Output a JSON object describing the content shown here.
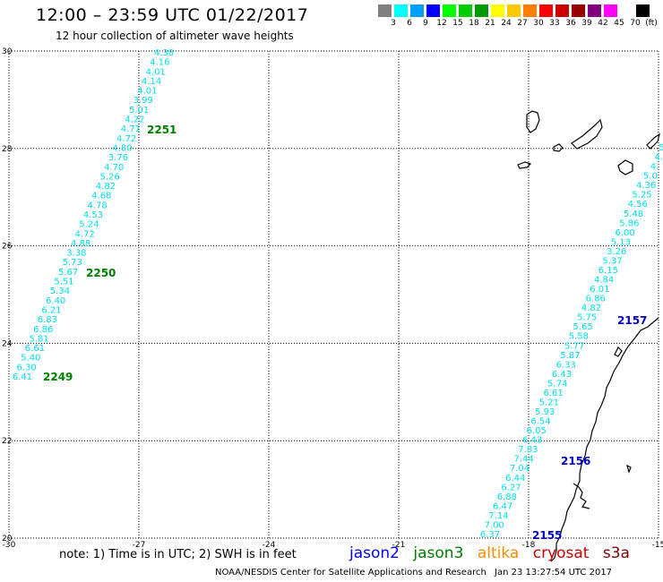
{
  "header": {
    "title": "12:00 – 23:59 UTC 01/22/2017",
    "subtitle": "12 hour collection of altimeter wave heights"
  },
  "color_scale": {
    "colors": [
      "#808080",
      "#00ffff",
      "#00a0ff",
      "#0000ff",
      "#00ff00",
      "#00cc00",
      "#009900",
      "#ffff00",
      "#ffc800",
      "#ff8000",
      "#ff0000",
      "#cc0000",
      "#990000",
      "#800080",
      "#ff00ff",
      "#ffffff",
      "#000000"
    ],
    "labels": [
      "3",
      "6",
      "9",
      "12",
      "15",
      "18",
      "21",
      "24",
      "27",
      "30",
      "33",
      "36",
      "39",
      "42",
      "45",
      "70",
      "(ft)"
    ]
  },
  "map": {
    "lat_labels": [
      "30",
      "28",
      "26",
      "24",
      "22",
      "20"
    ],
    "lon_labels": [
      "-30",
      "-27",
      "-24",
      "-21",
      "-18",
      "-15"
    ],
    "track_color": "#00e0e8",
    "track_left": [
      "4.38",
      "4.16",
      "4.01",
      "4.14",
      "4.01",
      "3.99",
      "5.01",
      "4.22",
      "4.71",
      "4.72",
      "4.80",
      "3.76",
      "4.70",
      "5.26",
      "4.82",
      "4.68",
      "4.78",
      "4.53",
      "5.24",
      "4.72",
      "4.88",
      "3.38",
      "5.73",
      "5.67",
      "5.51",
      "5.34",
      "6.40",
      "6.21",
      "6.83",
      "6.86",
      "5.81",
      "6.61",
      "5.40",
      "6.30",
      "6.41"
    ],
    "track_right": [
      "5.",
      "4.",
      "4.",
      "5.0",
      "4.36",
      "5.25",
      "4.56",
      "5.48",
      "5.86",
      "6.00",
      "5.13",
      "3.26",
      "5.37",
      "6.15",
      "4.84",
      "6.01",
      "6.86",
      "4.82",
      "5.75",
      "5.65",
      "5.58",
      "5.77",
      "5.87",
      "6.33",
      "6.43",
      "5.74",
      "6.61",
      "5.21",
      "5.93",
      "6.54",
      "6.05",
      "6.43",
      "7.83",
      "7.44",
      "7.04",
      "6.44",
      "6.27",
      "6.88",
      "6.47",
      "7.14",
      "7.00",
      "6.37"
    ],
    "time_labels": [
      {
        "text": "2251",
        "color": "#008000"
      },
      {
        "text": "2250",
        "color": "#008000"
      },
      {
        "text": "2249",
        "color": "#008000"
      },
      {
        "text": "2157",
        "color": "#0000c0"
      },
      {
        "text": "2156",
        "color": "#0000c0"
      },
      {
        "text": "2155",
        "color": "#0000c0"
      }
    ]
  },
  "footer": {
    "note": "note: 1) Time is in UTC; 2) SWH is in feet",
    "satellites": [
      {
        "name": "jason2",
        "color": "#0000ff"
      },
      {
        "name": "jason3",
        "color": "#008000"
      },
      {
        "name": "altika",
        "color": "#ff8c00"
      },
      {
        "name": "cryosat",
        "color": "#cc0000"
      },
      {
        "name": "s3a",
        "color": "#800000"
      }
    ],
    "credit": "NOAA/NESDIS Center for Satellite Applications and Research",
    "timestamp": "Jan 23 13:27:54 UTC 2017"
  }
}
